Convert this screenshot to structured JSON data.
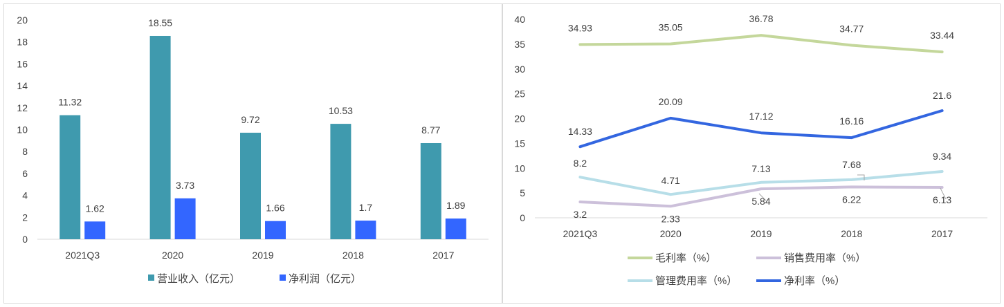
{
  "chart_data": [
    {
      "type": "bar",
      "categories": [
        "2021Q3",
        "2020",
        "2019",
        "2018",
        "2017"
      ],
      "ylim": [
        0,
        20
      ],
      "yticks": [
        0,
        2,
        4,
        6,
        8,
        10,
        12,
        14,
        16,
        18,
        20
      ],
      "series": [
        {
          "name": "营业收入（亿元）",
          "color": "#3f9aae",
          "values": [
            11.32,
            18.55,
            9.72,
            10.53,
            8.77
          ],
          "labels": [
            "11.32",
            "18.55",
            "9.72",
            "10.53",
            "8.77"
          ]
        },
        {
          "name": "净利润（亿元）",
          "color": "#3366ff",
          "values": [
            1.62,
            3.73,
            1.66,
            1.7,
            1.89
          ],
          "labels": [
            "1.62",
            "3.73",
            "1.66",
            "1.7",
            "1.89"
          ]
        }
      ]
    },
    {
      "type": "line",
      "categories": [
        "2021Q3",
        "2020",
        "2019",
        "2018",
        "2017"
      ],
      "ylim": [
        0,
        40
      ],
      "yticks": [
        0,
        5,
        10,
        15,
        20,
        25,
        30,
        35,
        40
      ],
      "series": [
        {
          "name": "毛利率（%）",
          "color": "#c4d79b",
          "values": [
            34.93,
            35.05,
            36.78,
            34.77,
            33.44
          ],
          "labels": [
            "34.93",
            "35.05",
            "36.78",
            "34.77",
            "33.44"
          ]
        },
        {
          "name": "销售费用率（%）",
          "color": "#ccc0da",
          "values": [
            3.2,
            2.33,
            5.84,
            6.22,
            6.13
          ],
          "labels": [
            "3.2",
            "2.33",
            "5.84",
            "6.22",
            "6.13"
          ]
        },
        {
          "name": "管理费用率（%）",
          "color": "#b7dee8",
          "values": [
            8.2,
            4.71,
            7.13,
            7.68,
            9.34
          ],
          "labels": [
            "8.2",
            "4.71",
            "7.13",
            "7.68",
            "9.34"
          ]
        },
        {
          "name": "净利率（%）",
          "color": "#3366e0",
          "values": [
            14.33,
            20.09,
            17.12,
            16.16,
            21.6
          ],
          "labels": [
            "14.33",
            "20.09",
            "17.12",
            "16.16",
            "21.6"
          ]
        }
      ]
    }
  ]
}
